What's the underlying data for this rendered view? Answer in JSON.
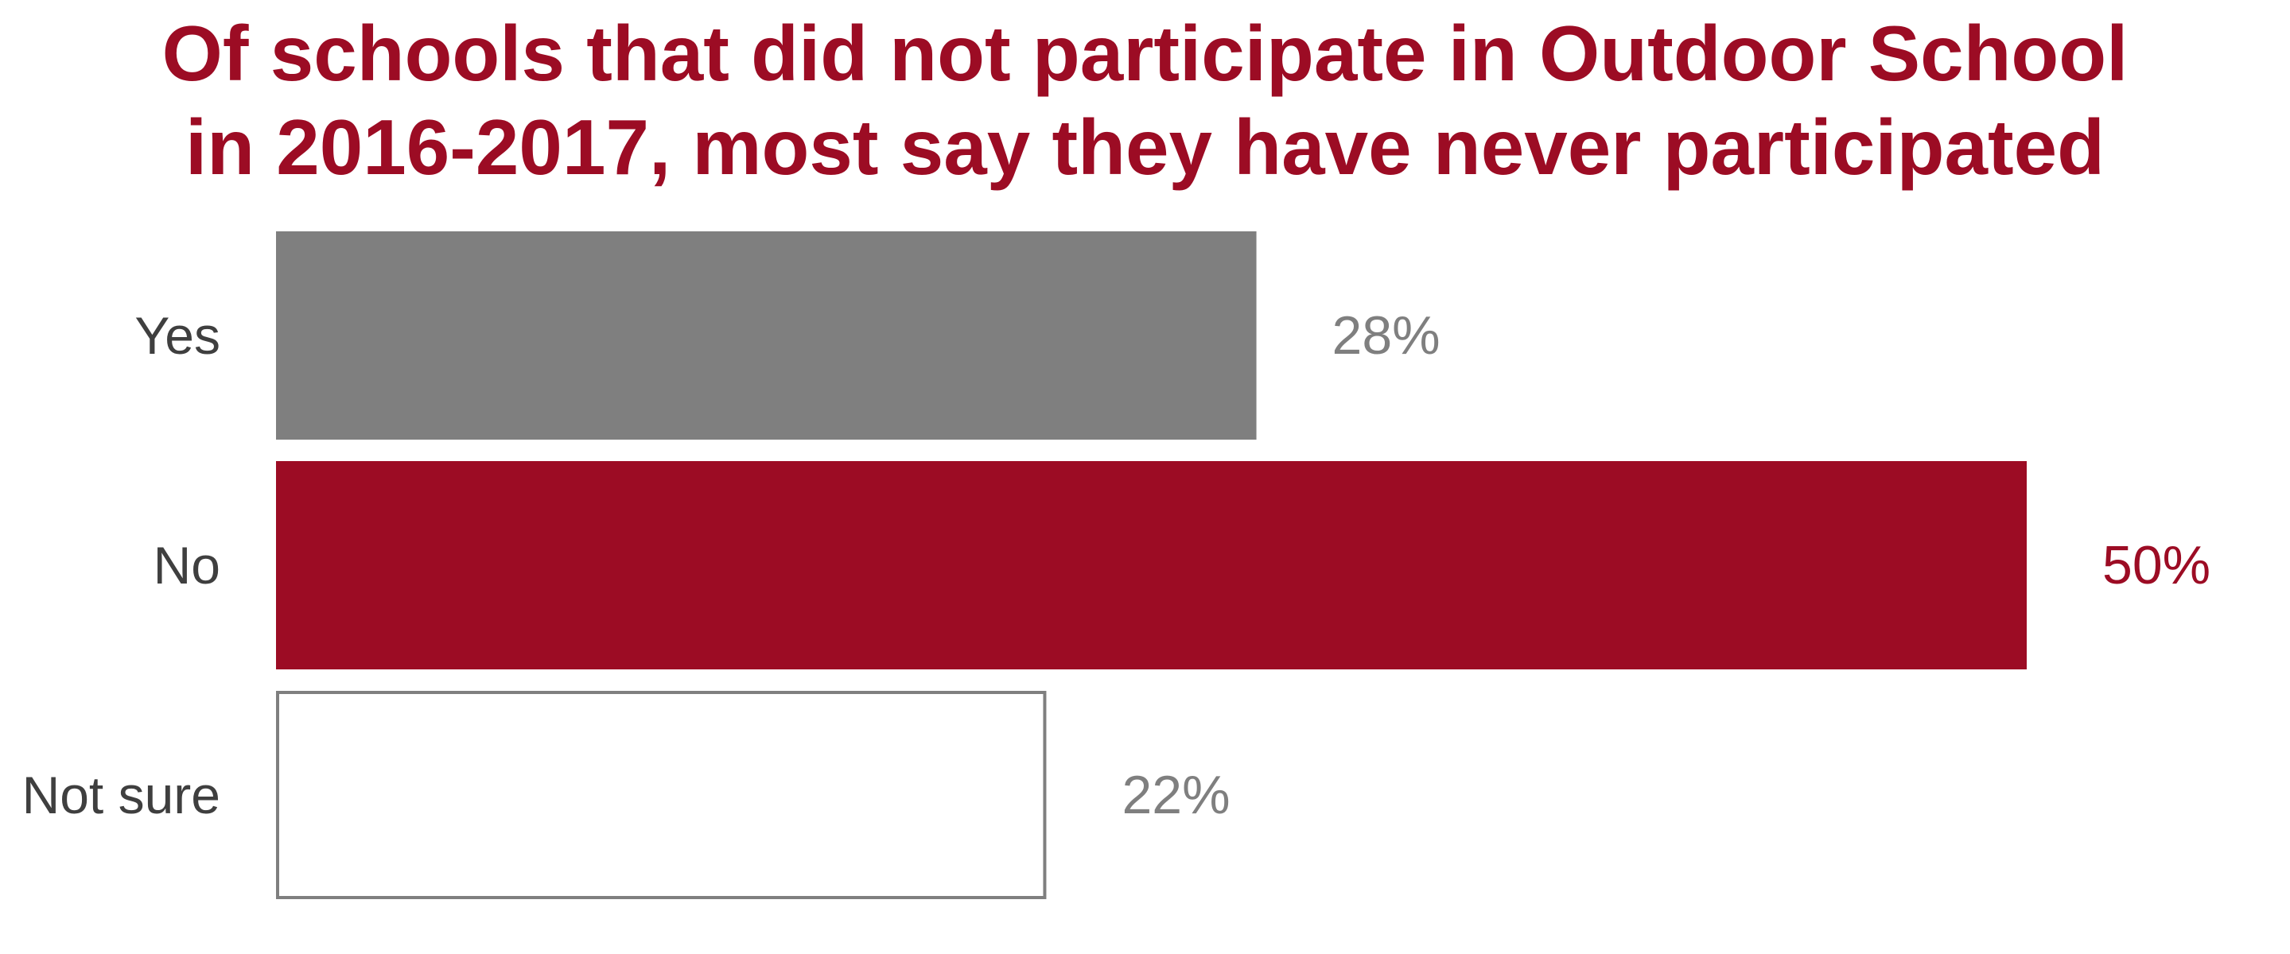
{
  "colors": {
    "title": "#9C0C24",
    "category_label": "#3f3f3f"
  },
  "chart_data": {
    "type": "bar",
    "orientation": "horizontal",
    "title": "Of schools that did not participate in Outdoor School\nin 2016-2017, most say they have never participated",
    "categories": [
      "Yes",
      "No",
      "Not sure"
    ],
    "values": [
      28,
      50,
      22
    ],
    "value_labels": [
      "28%",
      "50%",
      "22%"
    ],
    "unit": "%",
    "xlim": [
      0,
      50
    ],
    "grid": false,
    "legend": "none",
    "bar_styles": [
      {
        "fill": "#7F7F7F",
        "stroke": "none",
        "label_color": "#7F7F7F"
      },
      {
        "fill": "#9C0C24",
        "stroke": "none",
        "label_color": "#9C0C24"
      },
      {
        "fill": "#FFFFFF",
        "stroke": "#7F7F7F",
        "label_color": "#7F7F7F"
      }
    ]
  }
}
